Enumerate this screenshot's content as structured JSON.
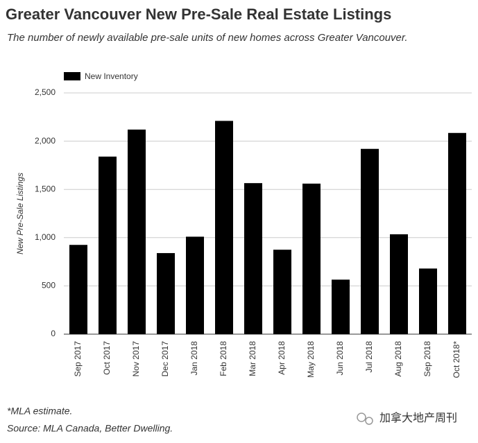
{
  "chart_data": {
    "type": "bar",
    "title": "Greater Vancouver New Pre-Sale Real Estate Listings",
    "subtitle": "The number of newly available pre-sale units of new homes across Greater Vancouver.",
    "y_label": "New Pre-Sale Listings",
    "categories": [
      "Sep 2017",
      "Oct 2017",
      "Nov 2017",
      "Dec 2017",
      "Jan 2018",
      "Feb 2018",
      "Mar 2018",
      "Apr 2018",
      "May 2018",
      "Jun 2018",
      "Jul 2018",
      "Aug 2018",
      "Sep 2018",
      "Oct 2018*"
    ],
    "series": [
      {
        "name": "New Inventory",
        "color": "#000000",
        "values": [
          925,
          1840,
          2120,
          840,
          1010,
          2210,
          1565,
          875,
          1560,
          565,
          1920,
          1035,
          680,
          2085
        ]
      }
    ],
    "ylim": [
      0,
      2500
    ],
    "yticks": [
      0,
      500,
      {
        "value": 1000,
        "label": "1,000"
      },
      {
        "value": 1500,
        "label": "1,500"
      },
      {
        "value": 2000,
        "label": "2,000"
      },
      {
        "value": 2500,
        "label": "2,500"
      }
    ],
    "grid": true,
    "legend": "top-left",
    "notes": [
      "*MLA estimate.",
      "Source: MLA Canada, Better Dwelling."
    ],
    "watermark": "加拿大地产周刊"
  }
}
